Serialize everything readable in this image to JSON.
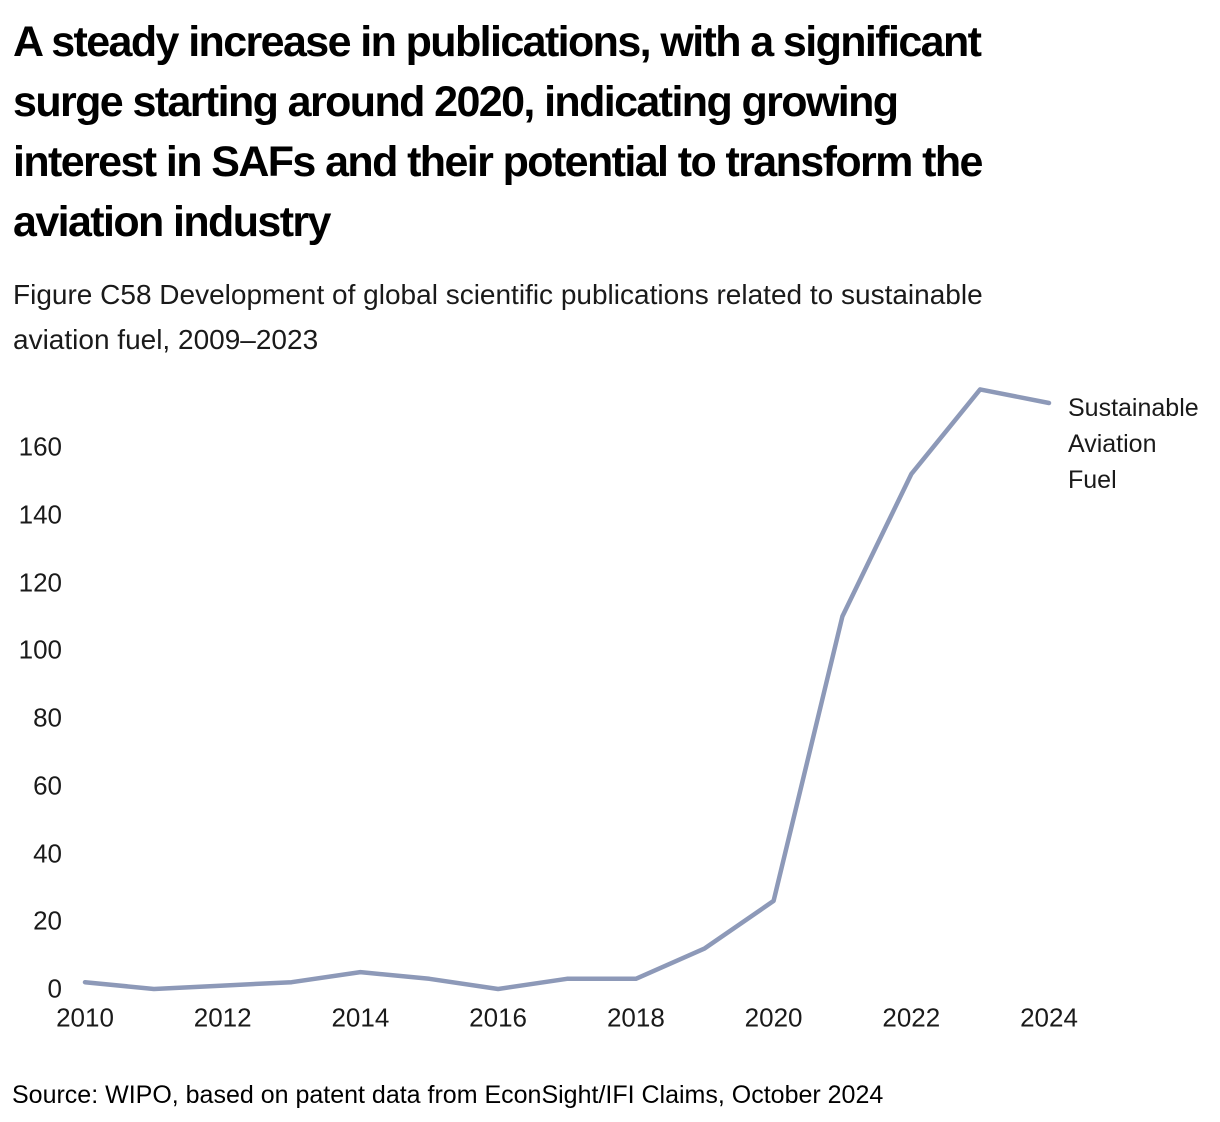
{
  "header": {
    "title_lines": [
      "A steady increase in publications, with a significant",
      "surge starting around 2020, indicating growing",
      "interest in SAFs and their potential to transform the",
      "aviation industry"
    ],
    "subtitle_lines": [
      "Figure C58 Development of global scientific publications related to sustainable",
      "aviation fuel, 2009–2023"
    ]
  },
  "chart_data": {
    "type": "line",
    "title": "A steady increase in publications, with a significant surge starting around 2020, indicating growing interest in SAFs and their potential to transform the aviation industry",
    "subtitle": "Figure C58 Development of global scientific publications related to sustainable aviation fuel, 2009–2023",
    "years": [
      2009,
      2010,
      2011,
      2012,
      2013,
      2014,
      2015,
      2016,
      2017,
      2018,
      2019,
      2020,
      2021,
      2022,
      2023
    ],
    "series": [
      {
        "name": "Sustainable Aviation Fuel",
        "values": [
          2,
          0,
          1,
          2,
          5,
          3,
          0,
          3,
          3,
          12,
          26,
          110,
          152,
          177,
          173
        ]
      }
    ],
    "x_tick_labels": [
      "2010",
      "2012",
      "2014",
      "2016",
      "2018",
      "2020",
      "2022",
      "2024"
    ],
    "y_ticks": [
      0,
      20,
      40,
      60,
      80,
      100,
      120,
      140,
      160
    ],
    "ylim": [
      0,
      180
    ],
    "xlabel": "",
    "ylabel": "",
    "grid": false,
    "legend_position": "right-of-line-end",
    "legend_lines": [
      "Sustainable",
      "Aviation",
      "Fuel"
    ],
    "line_color": "#8d99b8",
    "text_color": "#1a1a1a"
  },
  "source": {
    "text": "Source: WIPO, based on patent data from EconSight/IFI Claims, October 2024"
  }
}
